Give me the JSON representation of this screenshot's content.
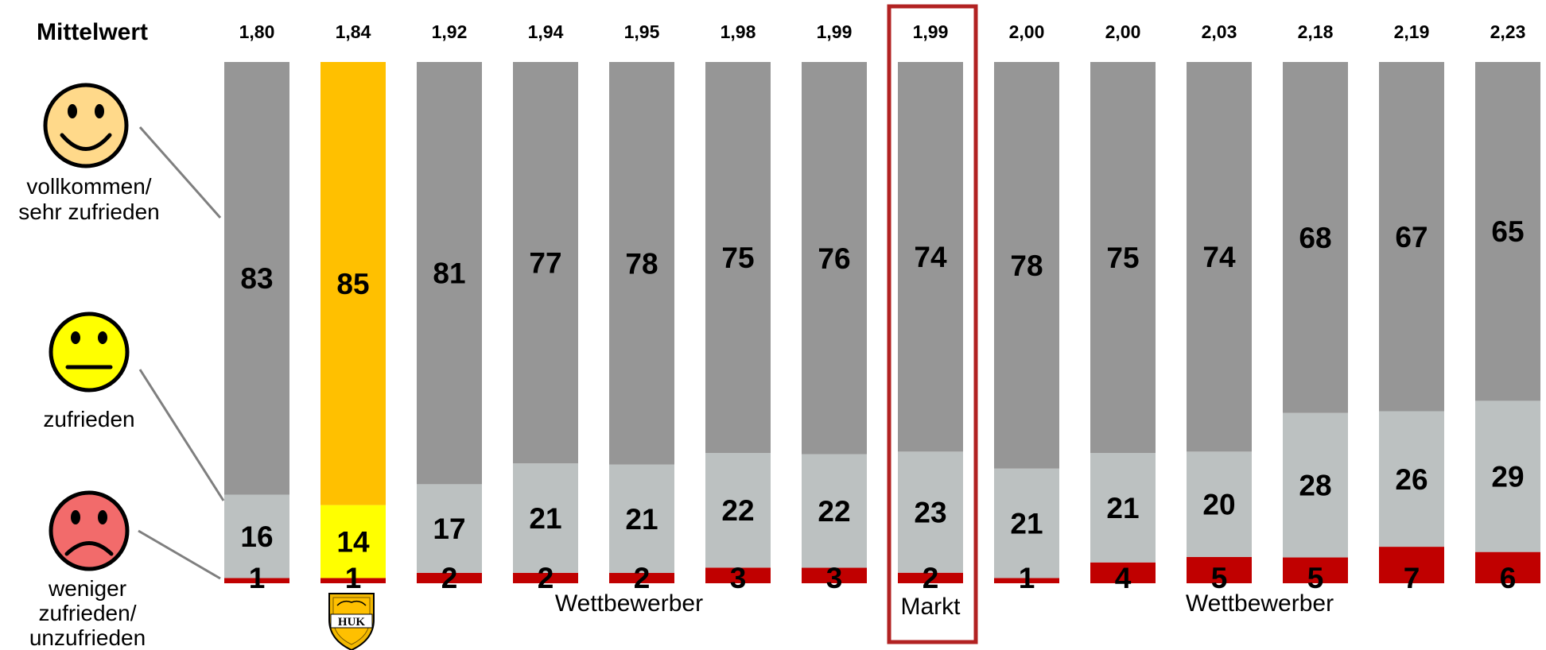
{
  "chart_data": {
    "type": "bar",
    "stacked": true,
    "mean_title": "Mittelwert",
    "means": [
      "1,80",
      "1,84",
      "1,92",
      "1,94",
      "1,95",
      "1,98",
      "1,99",
      "1,99",
      "2,00",
      "2,00",
      "2,03",
      "2,18",
      "2,19",
      "2,23"
    ],
    "series": [
      {
        "name": "weniger zufrieden/ unzufrieden",
        "values": [
          1,
          1,
          2,
          2,
          2,
          3,
          3,
          2,
          1,
          4,
          5,
          5,
          7,
          6
        ]
      },
      {
        "name": "zufrieden",
        "values": [
          16,
          14,
          17,
          21,
          21,
          22,
          22,
          23,
          21,
          21,
          20,
          28,
          26,
          29
        ]
      },
      {
        "name": "vollkommen/ sehr zufrieden",
        "values": [
          83,
          85,
          81,
          77,
          78,
          75,
          76,
          74,
          78,
          75,
          74,
          68,
          67,
          65
        ]
      }
    ],
    "highlight_index": 1,
    "market_index": 7,
    "ylim": [
      0,
      100
    ]
  },
  "legend": {
    "top": {
      "line1": "vollkommen/",
      "line2": "sehr zufrieden",
      "icon": "happy-smiley-icon"
    },
    "mid": {
      "line1": "zufrieden",
      "icon": "neutral-smiley-icon"
    },
    "bottom": {
      "line1": "weniger",
      "line2": "zufrieden/",
      "line3": "unzufrieden",
      "icon": "sad-smiley-icon"
    }
  },
  "groups": {
    "left": "Wettbewerber",
    "market": "Markt",
    "right": "Wettbewerber"
  },
  "logo": {
    "text": "HUK"
  },
  "colors": {
    "top": "#969696",
    "mid": "#bcc1c1",
    "bottom": "#c00000",
    "highlight_top": "#ffc000",
    "highlight_mid": "#ffff00",
    "highlight_bottom": "#c00000",
    "market_frame": "#b22222",
    "happy_face": "#ffd98a",
    "neutral_face": "#ffff00",
    "sad_face": "#f26b6b"
  }
}
